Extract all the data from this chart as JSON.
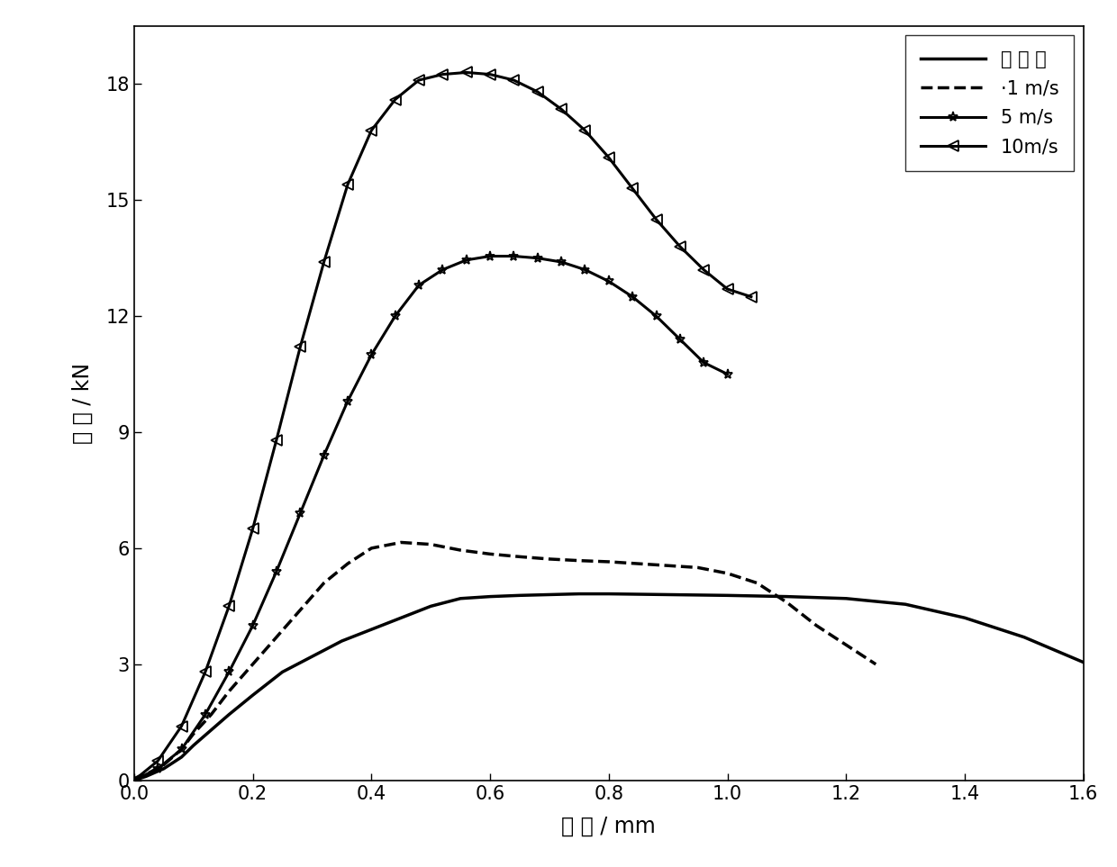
{
  "title": "",
  "xlabel_parts": [
    "位 移 / mm"
  ],
  "ylabel_parts": [
    "载 荷 / kN"
  ],
  "xlim": [
    0.0,
    1.6
  ],
  "ylim": [
    0,
    19.5
  ],
  "yticks": [
    0,
    3,
    6,
    9,
    12,
    15,
    18
  ],
  "xticks": [
    0.0,
    0.2,
    0.4,
    0.6,
    0.8,
    1.0,
    1.2,
    1.4,
    1.6
  ],
  "background_color": "#ffffff",
  "series": [
    {
      "label": "准 静 态",
      "linestyle": "-",
      "linewidth": 2.5,
      "color": "#000000",
      "marker": "none",
      "markersize": 0,
      "x": [
        0.0,
        0.02,
        0.05,
        0.08,
        0.1,
        0.13,
        0.16,
        0.2,
        0.25,
        0.3,
        0.35,
        0.4,
        0.45,
        0.5,
        0.55,
        0.6,
        0.65,
        0.7,
        0.75,
        0.8,
        0.9,
        1.0,
        1.1,
        1.2,
        1.3,
        1.4,
        1.5,
        1.6
      ],
      "y": [
        0.0,
        0.1,
        0.3,
        0.6,
        0.9,
        1.3,
        1.7,
        2.2,
        2.8,
        3.2,
        3.6,
        3.9,
        4.2,
        4.5,
        4.7,
        4.75,
        4.78,
        4.8,
        4.82,
        4.82,
        4.8,
        4.78,
        4.75,
        4.7,
        4.55,
        4.2,
        3.7,
        3.05
      ]
    },
    {
      "label": "·1 m/s",
      "linestyle": "--",
      "linewidth": 2.5,
      "color": "#000000",
      "marker": "none",
      "markersize": 0,
      "x": [
        0.0,
        0.02,
        0.05,
        0.08,
        0.1,
        0.13,
        0.16,
        0.2,
        0.24,
        0.28,
        0.32,
        0.36,
        0.4,
        0.45,
        0.5,
        0.55,
        0.6,
        0.65,
        0.7,
        0.75,
        0.8,
        0.85,
        0.9,
        0.95,
        1.0,
        1.05,
        1.1,
        1.15,
        1.2,
        1.25
      ],
      "y": [
        0.0,
        0.15,
        0.4,
        0.8,
        1.2,
        1.7,
        2.3,
        3.0,
        3.7,
        4.4,
        5.1,
        5.6,
        6.0,
        6.15,
        6.1,
        5.95,
        5.85,
        5.78,
        5.72,
        5.68,
        5.65,
        5.6,
        5.55,
        5.5,
        5.35,
        5.1,
        4.6,
        4.0,
        3.5,
        3.0
      ]
    },
    {
      "label": "5 m/s",
      "linestyle": "-",
      "linewidth": 2.2,
      "color": "#000000",
      "marker": "*",
      "markersize": 8,
      "markevery": 1,
      "x": [
        0.0,
        0.04,
        0.08,
        0.12,
        0.16,
        0.2,
        0.24,
        0.28,
        0.32,
        0.36,
        0.4,
        0.44,
        0.48,
        0.52,
        0.56,
        0.6,
        0.64,
        0.68,
        0.72,
        0.76,
        0.8,
        0.84,
        0.88,
        0.92,
        0.96,
        1.0
      ],
      "y": [
        0.0,
        0.3,
        0.8,
        1.7,
        2.8,
        4.0,
        5.4,
        6.9,
        8.4,
        9.8,
        11.0,
        12.0,
        12.8,
        13.2,
        13.45,
        13.55,
        13.55,
        13.5,
        13.4,
        13.2,
        12.9,
        12.5,
        12.0,
        11.4,
        10.8,
        10.5
      ]
    },
    {
      "label": "10m/s",
      "linestyle": "-",
      "linewidth": 2.2,
      "color": "#000000",
      "marker": "<",
      "markersize": 8,
      "markevery": 1,
      "x": [
        0.0,
        0.04,
        0.08,
        0.12,
        0.16,
        0.2,
        0.24,
        0.28,
        0.32,
        0.36,
        0.4,
        0.44,
        0.48,
        0.52,
        0.56,
        0.6,
        0.64,
        0.68,
        0.72,
        0.76,
        0.8,
        0.84,
        0.88,
        0.92,
        0.96,
        1.0,
        1.04
      ],
      "y": [
        0.0,
        0.5,
        1.4,
        2.8,
        4.5,
        6.5,
        8.8,
        11.2,
        13.4,
        15.4,
        16.8,
        17.6,
        18.1,
        18.25,
        18.3,
        18.25,
        18.1,
        17.8,
        17.35,
        16.8,
        16.1,
        15.3,
        14.5,
        13.8,
        13.2,
        12.7,
        12.5
      ]
    }
  ],
  "legend_loc": "upper right",
  "legend_fontsize": 15,
  "axis_fontsize": 17,
  "tick_fontsize": 15
}
